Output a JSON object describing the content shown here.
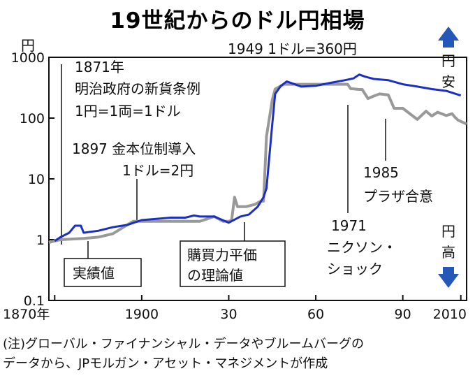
{
  "chart_data": {
    "type": "line",
    "title": "19世紀からのドル円相場",
    "ylabel": "円",
    "yscale": "log",
    "ylim": [
      0.1,
      1000
    ],
    "xlim": [
      1868,
      2012
    ],
    "xticks": [
      1870,
      1900,
      1930,
      1960,
      1990,
      2010
    ],
    "xtick_labels": [
      "1870年",
      "1900",
      "30",
      "60",
      "90",
      "2010"
    ],
    "yticks": [
      0.1,
      1,
      10,
      100,
      1000
    ],
    "ytick_labels": [
      "0.1",
      "1",
      "10",
      "100",
      "1000"
    ],
    "series": [
      {
        "name": "実績値",
        "color": "#999999",
        "points": [
          [
            1868,
            0.9
          ],
          [
            1870,
            0.95
          ],
          [
            1872,
            1.0
          ],
          [
            1880,
            1.05
          ],
          [
            1885,
            1.1
          ],
          [
            1890,
            1.25
          ],
          [
            1897,
            2.0
          ],
          [
            1900,
            2.0
          ],
          [
            1905,
            2.0
          ],
          [
            1910,
            2.0
          ],
          [
            1915,
            2.0
          ],
          [
            1920,
            2.0
          ],
          [
            1925,
            2.4
          ],
          [
            1928,
            2.0
          ],
          [
            1930,
            2.0
          ],
          [
            1931,
            2.1
          ],
          [
            1932,
            5.0
          ],
          [
            1933,
            3.5
          ],
          [
            1936,
            3.5
          ],
          [
            1939,
            3.8
          ],
          [
            1941,
            4.3
          ],
          [
            1942,
            4.3
          ],
          [
            1943,
            50
          ],
          [
            1945,
            200
          ],
          [
            1946,
            300
          ],
          [
            1949,
            360
          ],
          [
            1960,
            360
          ],
          [
            1971,
            360
          ],
          [
            1972,
            305
          ],
          [
            1975,
            296
          ],
          [
            1976,
            296
          ],
          [
            1978,
            210
          ],
          [
            1980,
            230
          ],
          [
            1982,
            250
          ],
          [
            1985,
            240
          ],
          [
            1987,
            145
          ],
          [
            1990,
            145
          ],
          [
            1995,
            95
          ],
          [
            1998,
            130
          ],
          [
            2000,
            108
          ],
          [
            2002,
            125
          ],
          [
            2005,
            110
          ],
          [
            2007,
            118
          ],
          [
            2008,
            103
          ],
          [
            2009,
            93
          ],
          [
            2010,
            88
          ],
          [
            2012,
            80
          ]
        ]
      },
      {
        "name": "購買力平価の理論値",
        "color": "#1c2fc4",
        "points": [
          [
            1870,
            0.95
          ],
          [
            1872,
            1.1
          ],
          [
            1875,
            1.3
          ],
          [
            1877,
            1.7
          ],
          [
            1879,
            1.7
          ],
          [
            1880,
            1.3
          ],
          [
            1885,
            1.4
          ],
          [
            1890,
            1.6
          ],
          [
            1895,
            1.75
          ],
          [
            1900,
            2.1
          ],
          [
            1905,
            2.2
          ],
          [
            1910,
            2.3
          ],
          [
            1915,
            2.3
          ],
          [
            1918,
            2.5
          ],
          [
            1920,
            2.4
          ],
          [
            1925,
            2.4
          ],
          [
            1930,
            1.9
          ],
          [
            1934,
            2.4
          ],
          [
            1937,
            2.6
          ],
          [
            1940,
            3.5
          ],
          [
            1942,
            5.0
          ],
          [
            1943,
            7.0
          ],
          [
            1945,
            80
          ],
          [
            1946,
            250
          ],
          [
            1948,
            340
          ],
          [
            1950,
            400
          ],
          [
            1955,
            330
          ],
          [
            1960,
            340
          ],
          [
            1965,
            380
          ],
          [
            1970,
            420
          ],
          [
            1973,
            450
          ],
          [
            1975,
            520
          ],
          [
            1977,
            480
          ],
          [
            1980,
            440
          ],
          [
            1985,
            420
          ],
          [
            1990,
            360
          ],
          [
            1995,
            330
          ],
          [
            2000,
            300
          ],
          [
            2005,
            280
          ],
          [
            2010,
            235
          ]
        ]
      }
    ],
    "annotations": [
      {
        "lines": [
          "1871年",
          "明治政府の新貨条例",
          "1円=1両=1ドル"
        ]
      },
      {
        "lines": [
          "1897 金本位制導入",
          "1ドル=2円"
        ]
      },
      {
        "lines": [
          "1949 1ドル=360円"
        ]
      },
      {
        "lines": [
          "1971",
          "ニクソン・",
          "ショック"
        ]
      },
      {
        "lines": [
          "1985",
          "プラザ合意"
        ]
      }
    ],
    "arrows": {
      "up_label": "円安",
      "down_label": "円高"
    },
    "note": [
      "(注)グローバル・ファイナンシャル・データやブルームバーグの",
      "データから、JPモルガン・アセット・マネジメントが作成"
    ]
  }
}
